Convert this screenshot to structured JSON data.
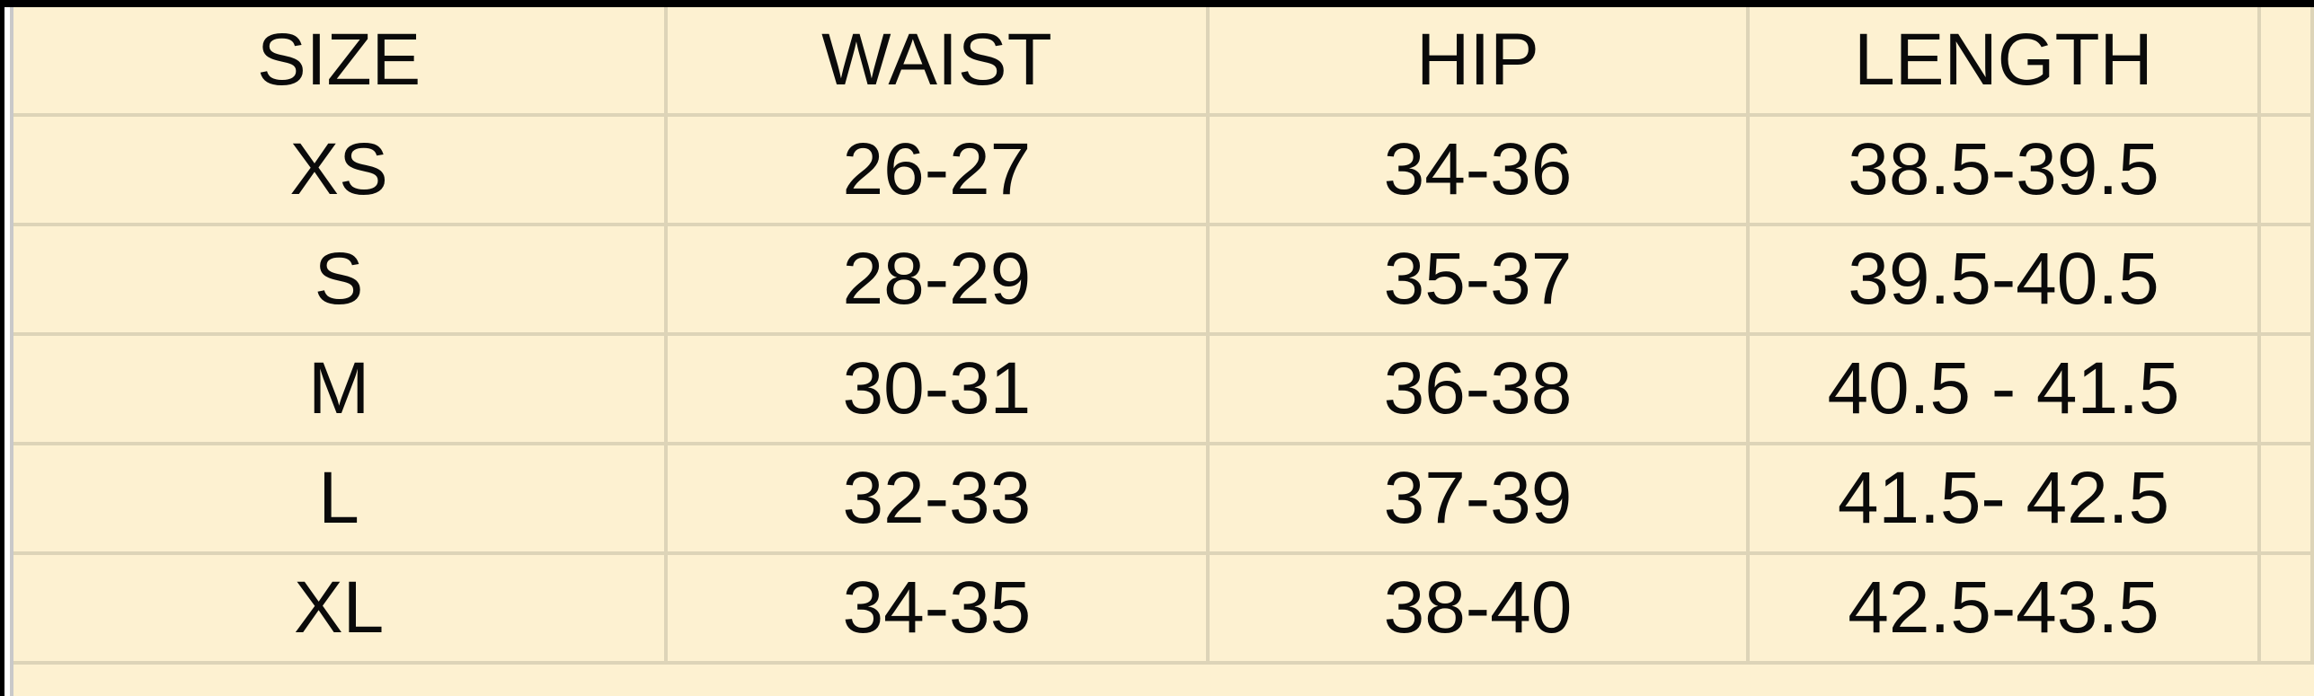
{
  "table": {
    "headers": [
      "SIZE",
      "WAIST",
      "HIP",
      "LENGTH"
    ],
    "rows": [
      [
        "XS",
        "26-27",
        "34-36",
        "38.5-39.5"
      ],
      [
        "S",
        "28-29",
        "35-37",
        "39.5-40.5"
      ],
      [
        "M",
        "30-31",
        "36-38",
        "40.5 - 41.5"
      ],
      [
        "L",
        "32-33",
        "37-39",
        "41.5- 42.5"
      ],
      [
        "XL",
        "34-35",
        "38-40",
        "42.5-43.5"
      ]
    ]
  },
  "colors": {
    "cell_background": "#fdf1d1",
    "grid_line": "#ddd4b8",
    "text": "#0a0a0a"
  }
}
